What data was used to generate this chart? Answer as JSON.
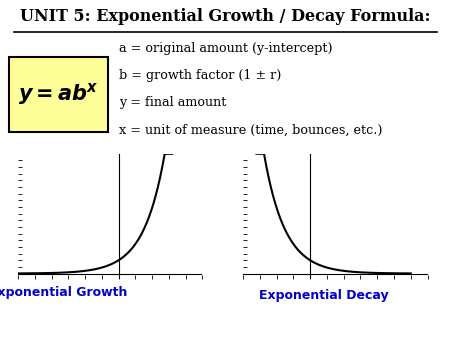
{
  "title": "UNIT 5: Exponential Growth / Decay Formula:",
  "annotation_a": "a = original amount (y-intercept)",
  "annotation_b": "b = growth factor (1 ± r)",
  "annotation_y": "y = final amount",
  "annotation_x": "x = unit of measure (time, bounces, etc.)",
  "label_growth": "Exponential Growth",
  "label_decay": "Exponential Decay",
  "box_color": "#FFFF99",
  "box_edge_color": "#000000",
  "text_color": "#0000CC",
  "title_color": "#000000",
  "annotation_color": "#000000",
  "curve_color": "#000000",
  "background_color": "#FFFFFF"
}
